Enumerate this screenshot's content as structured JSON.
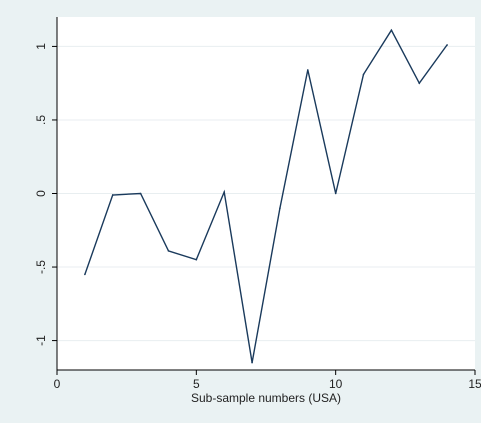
{
  "chart_data": {
    "type": "line",
    "title": "",
    "xlabel": "Sub-sample numbers  (USA)",
    "ylabel": "",
    "xlim": [
      0,
      15
    ],
    "ylim": [
      -1.2,
      1.2
    ],
    "x_ticks": [
      0,
      5,
      10,
      15
    ],
    "x_tick_labels": [
      "0",
      "5",
      "10",
      "15"
    ],
    "y_ticks": [
      -1,
      -0.5,
      0,
      0.5,
      1
    ],
    "y_tick_labels": [
      "-1",
      "-.5",
      "0",
      ".5",
      "1"
    ],
    "grid": true,
    "colors": {
      "line": "#1a3a5c",
      "plot_bg": "#ffffff",
      "outer_bg": "#eaf2f3",
      "grid": "#e8eef0"
    },
    "series": [
      {
        "x": [
          1,
          2,
          3,
          4,
          5,
          6,
          7,
          8,
          9,
          10,
          11,
          12,
          13,
          14
        ],
        "values": [
          -0.55,
          -0.01,
          0.0,
          -0.39,
          -0.45,
          0.01,
          -1.15,
          -0.1,
          0.84,
          0.0,
          0.81,
          1.11,
          0.75,
          1.01
        ]
      }
    ]
  }
}
